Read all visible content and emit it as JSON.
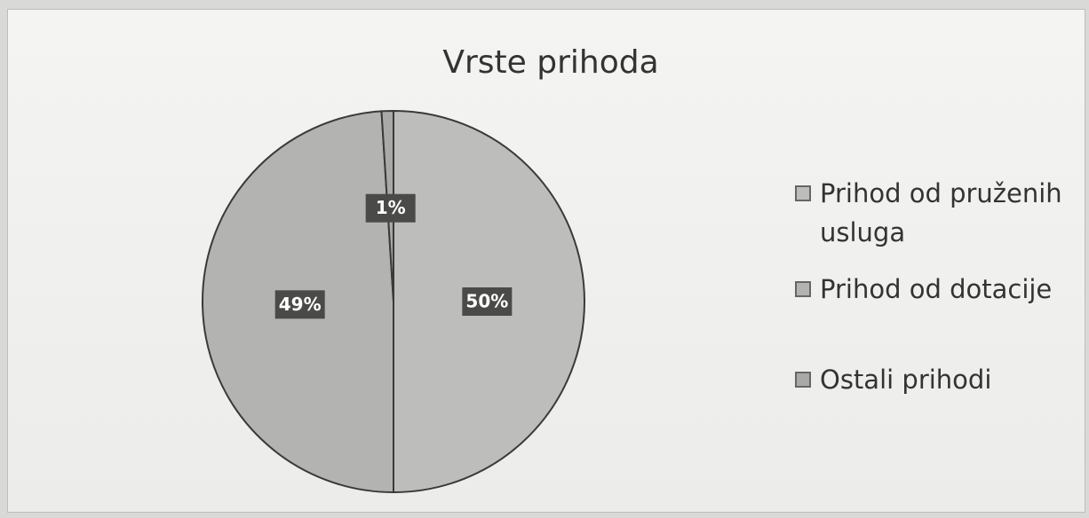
{
  "chart_data": {
    "type": "pie",
    "title": "Vrste prihoda",
    "categories": [
      "Prihod od pruženih usluga",
      "Prihod od dotacije",
      "Ostali prihodi"
    ],
    "values": [
      50,
      49,
      1
    ],
    "value_labels": [
      "50%",
      "49%",
      "1%"
    ],
    "colors": [
      "#bdbdbb",
      "#b3b3b1",
      "#a9a9a7"
    ],
    "legend": "right"
  }
}
